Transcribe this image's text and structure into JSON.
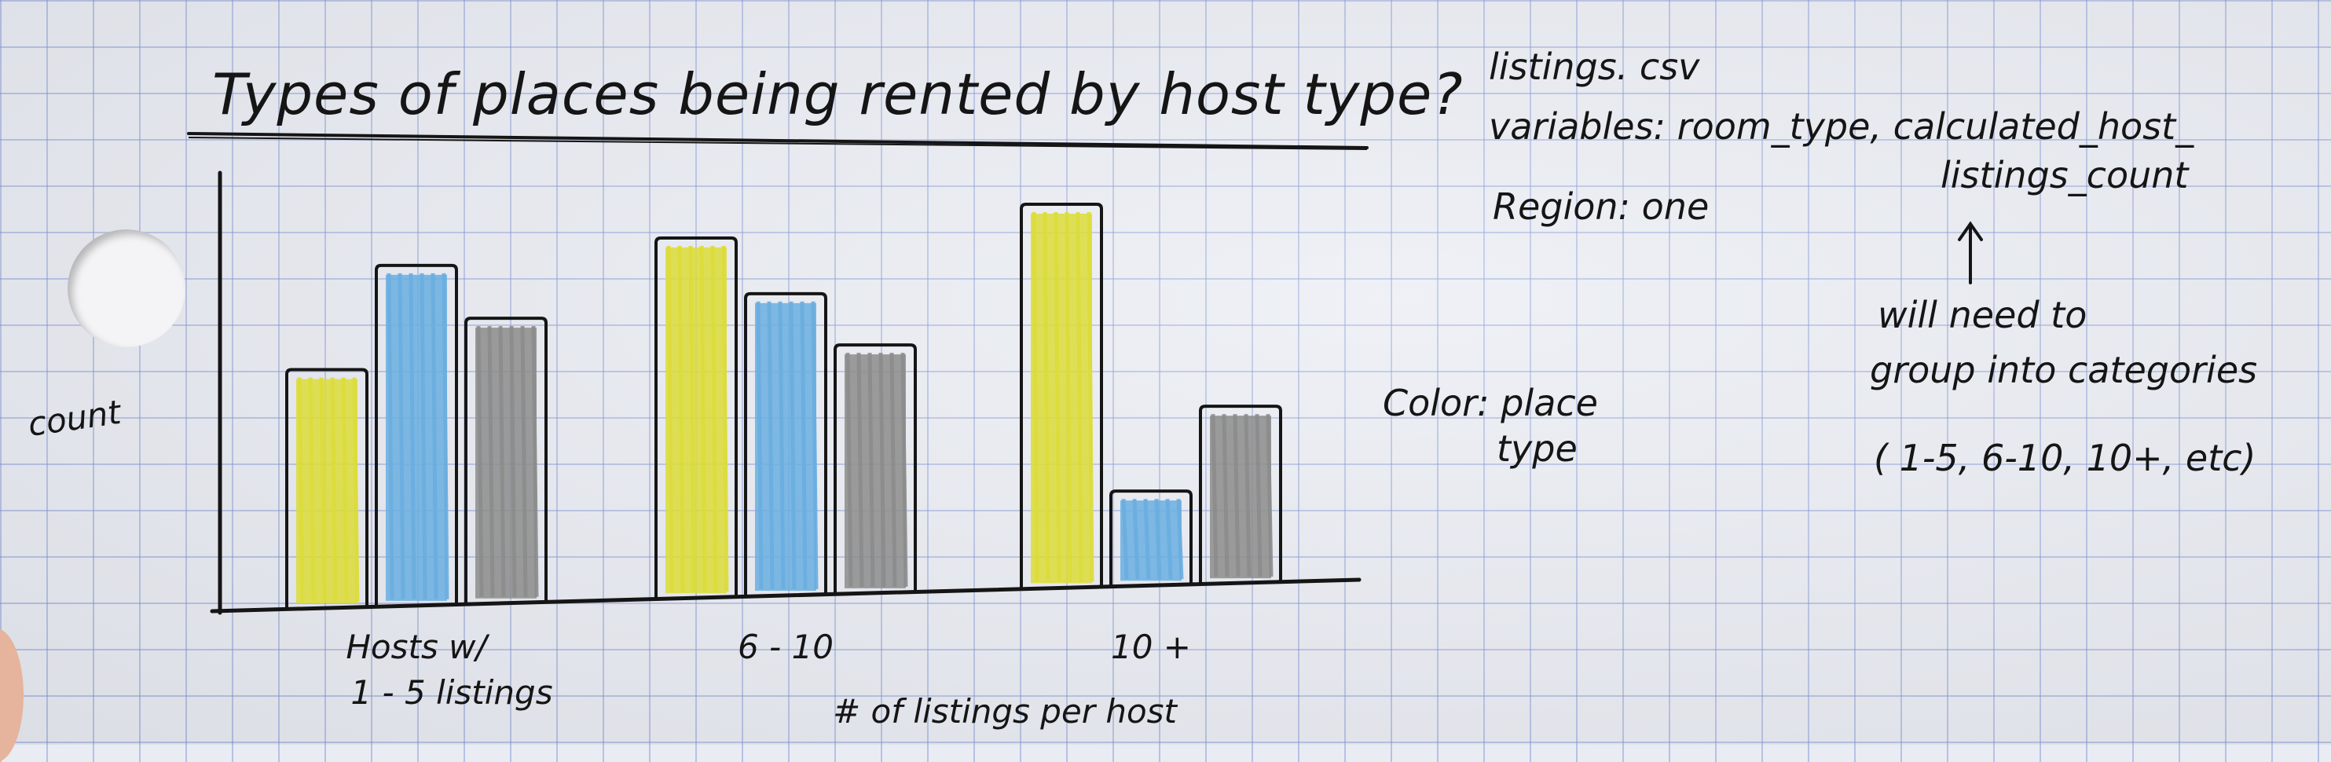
{
  "chart_data": {
    "type": "bar",
    "title": "Types of places being rented by host type?",
    "xlabel": "# of listings per host",
    "ylabel": "count",
    "categories": [
      "Hosts w/ 1 - 5 listings",
      "6 - 10",
      "10 +"
    ],
    "category_lines": [
      [
        "Hosts  w/",
        "1 - 5 listings"
      ],
      [
        "6  -  10"
      ],
      [
        "10 +"
      ]
    ],
    "series": [
      {
        "values": [
          6.2,
          9.6,
          10.5
        ],
        "color": "#dcdc3a"
      },
      {
        "values": [
          8.9,
          8.1,
          2.6
        ],
        "color": "#6aaee0"
      },
      {
        "values": [
          7.5,
          6.7,
          4.9
        ],
        "color": "#8c8c8c"
      }
    ],
    "ylim": [
      0,
      10.5
    ],
    "legend": "none"
  },
  "notes": {
    "file": "listings. csv",
    "variables_line1": "variables: room_type, calculated_host_",
    "variables_line2": "listings_count",
    "region": "Region: one",
    "color_line1": "Color: place",
    "color_line2": "type",
    "arrow": "↑",
    "group_line1": "will need to",
    "group_line2": "group into categories",
    "group_line3": "( 1-5, 6-10,  10+,  etc)"
  }
}
